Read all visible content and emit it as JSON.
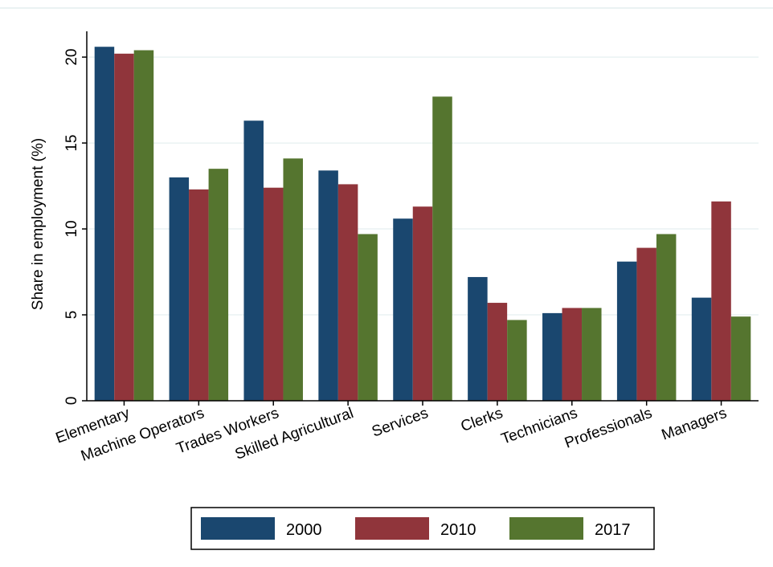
{
  "chart_data": {
    "type": "bar",
    "title": "",
    "xlabel": "",
    "ylabel": "Share in employment (%)",
    "ylim": [
      0,
      21.5
    ],
    "yticks": [
      0,
      5,
      10,
      15,
      20
    ],
    "grid": true,
    "legend_position": "bottom",
    "categories": [
      "Elementary",
      "Machine Operators",
      "Trades Workers",
      "Skilled Agricultural",
      "Services",
      "Clerks",
      "Technicians",
      "Professionals",
      "Managers"
    ],
    "series": [
      {
        "name": "2000",
        "color": "#1a476f",
        "values": [
          20.6,
          13.0,
          16.3,
          13.4,
          10.6,
          7.2,
          5.1,
          8.1,
          6.0
        ]
      },
      {
        "name": "2010",
        "color": "#90353b",
        "values": [
          20.2,
          12.3,
          12.4,
          12.6,
          11.3,
          5.7,
          5.4,
          8.9,
          11.6
        ]
      },
      {
        "name": "2017",
        "color": "#55752f",
        "values": [
          20.4,
          13.5,
          14.1,
          9.7,
          17.7,
          4.7,
          5.4,
          9.7,
          4.9
        ]
      }
    ]
  }
}
